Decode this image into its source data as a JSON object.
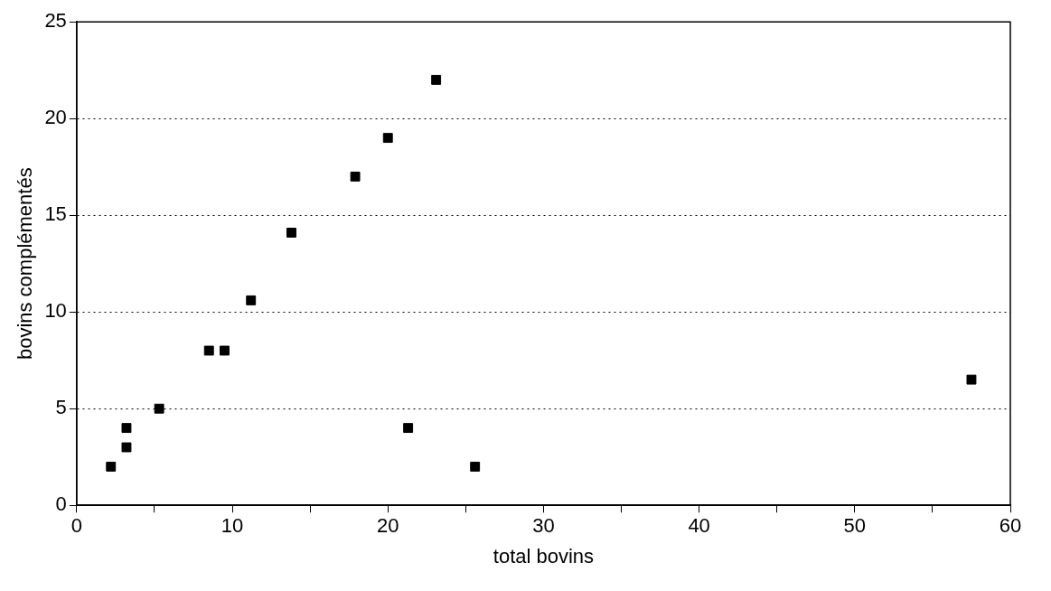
{
  "chart_data": {
    "type": "scatter",
    "xlabel": "total bovins",
    "ylabel": "bovins complémentés",
    "series": [
      {
        "color": "#000000",
        "x": [
          2.2,
          3.2,
          3.2,
          5.3,
          8.5,
          9.5,
          11.2,
          13.8,
          17.9,
          20,
          23.1,
          21.3,
          25.6,
          57.5
        ],
        "values": [
          2,
          3,
          4,
          5,
          8,
          8,
          10.6,
          14.1,
          17,
          19,
          22,
          4,
          2,
          6.5
        ]
      }
    ],
    "xlim": [
      0,
      60
    ],
    "xticks": [
      0,
      {
        "value": 5,
        "label": null
      },
      10,
      {
        "value": 15,
        "label": null
      },
      20,
      {
        "value": 25,
        "label": null
      },
      30,
      {
        "value": 35,
        "label": null
      },
      40,
      {
        "value": 45,
        "label": null
      },
      50,
      {
        "value": 55,
        "label": null
      },
      60
    ],
    "ylim": [
      0,
      25
    ],
    "yticks": [
      0,
      5,
      10,
      15,
      20,
      25
    ],
    "grid": "y",
    "line_style": "dotted",
    "marker": "square",
    "legend": false
  }
}
